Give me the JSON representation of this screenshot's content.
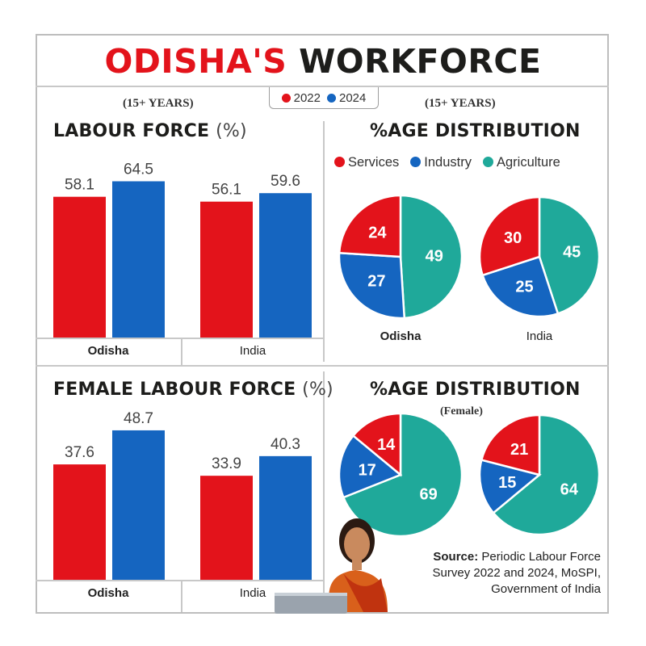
{
  "title": {
    "part1": "ODISHA'S",
    "part2": "WORKFORCE"
  },
  "legend": [
    {
      "label": "2022",
      "color": "#e3131b"
    },
    {
      "label": "2024",
      "color": "#1565c0"
    }
  ],
  "subtitle_left": "(15+ YEARS)",
  "subtitle_right": "(15+ YEARS)",
  "panels": {
    "labour": {
      "title": "LABOUR FORCE",
      "unit": "(%)"
    },
    "female_labour": {
      "title": "FEMALE LABOUR FORCE",
      "unit": "(%)"
    },
    "dist": {
      "title": "%AGE DISTRIBUTION"
    },
    "female_dist": {
      "title": "%AGE DISTRIBUTION",
      "subtitle": "(Female)"
    }
  },
  "pie_legend": [
    {
      "label": "Services",
      "color": "#e3131b"
    },
    {
      "label": "Industry",
      "color": "#1565c0"
    },
    {
      "label": "Agriculture",
      "color": "#1fa99a"
    }
  ],
  "source": {
    "label": "Source:",
    "text": "Periodic Labour Force Survey 2022 and 2024, MoSPI, Government of India"
  },
  "chart_data": [
    {
      "type": "bar",
      "title": "LABOUR FORCE (%)",
      "categories": [
        "Odisha",
        "India"
      ],
      "series": [
        {
          "name": "2022",
          "values": [
            58.1,
            56.1
          ]
        },
        {
          "name": "2024",
          "values": [
            64.5,
            59.6
          ]
        }
      ]
    },
    {
      "type": "bar",
      "title": "FEMALE LABOUR FORCE (%)",
      "categories": [
        "Odisha",
        "India"
      ],
      "series": [
        {
          "name": "2022",
          "values": [
            37.6,
            33.9
          ]
        },
        {
          "name": "2024",
          "values": [
            48.7,
            40.3
          ]
        }
      ]
    },
    {
      "type": "pie",
      "title": "%AGE DISTRIBUTION",
      "pies": [
        {
          "name": "Odisha",
          "slices": [
            {
              "label": "Services",
              "value": 24
            },
            {
              "label": "Industry",
              "value": 27
            },
            {
              "label": "Agriculture",
              "value": 49
            }
          ]
        },
        {
          "name": "India",
          "slices": [
            {
              "label": "Services",
              "value": 30
            },
            {
              "label": "Industry",
              "value": 25
            },
            {
              "label": "Agriculture",
              "value": 45
            }
          ]
        }
      ]
    },
    {
      "type": "pie",
      "title": "%AGE DISTRIBUTION",
      "subtitle": "(Female)",
      "pies": [
        {
          "slices": [
            {
              "label": "Services",
              "value": 14
            },
            {
              "label": "Industry",
              "value": 17
            },
            {
              "label": "Agriculture",
              "value": 69
            }
          ]
        },
        {
          "slices": [
            {
              "label": "Services",
              "value": 21
            },
            {
              "label": "Industry",
              "value": 15
            },
            {
              "label": "Agriculture",
              "value": 64
            }
          ]
        }
      ]
    }
  ]
}
